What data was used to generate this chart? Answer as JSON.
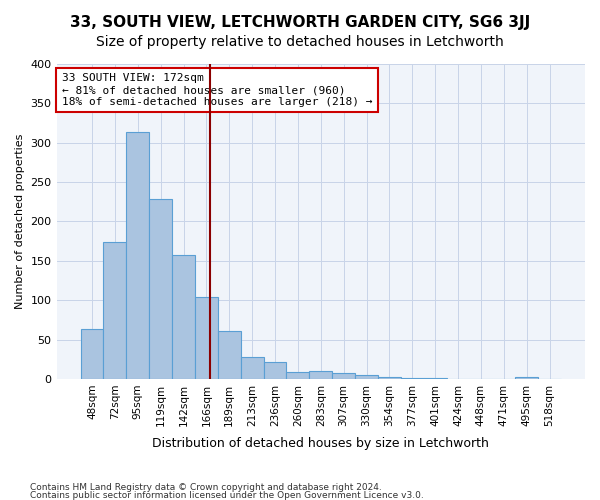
{
  "title": "33, SOUTH VIEW, LETCHWORTH GARDEN CITY, SG6 3JJ",
  "subtitle": "Size of property relative to detached houses in Letchworth",
  "xlabel": "Distribution of detached houses by size in Letchworth",
  "ylabel": "Number of detached properties",
  "bins": [
    "48sqm",
    "72sqm",
    "95sqm",
    "119sqm",
    "142sqm",
    "166sqm",
    "189sqm",
    "213sqm",
    "236sqm",
    "260sqm",
    "283sqm",
    "307sqm",
    "330sqm",
    "354sqm",
    "377sqm",
    "401sqm",
    "424sqm",
    "448sqm",
    "471sqm",
    "495sqm",
    "518sqm"
  ],
  "values": [
    63,
    174,
    314,
    229,
    158,
    104,
    61,
    28,
    22,
    9,
    10,
    7,
    5,
    2,
    1,
    1,
    0,
    0,
    0,
    3,
    0
  ],
  "bar_width": 1.0,
  "bar_color": "#aac4e0",
  "bar_edge_color": "#5a9fd4",
  "vline_bin_index": 5.15,
  "annotation_text": "33 SOUTH VIEW: 172sqm\n← 81% of detached houses are smaller (960)\n18% of semi-detached houses are larger (218) →",
  "annotation_box_color": "#ffffff",
  "annotation_box_edge": "#cc0000",
  "ylim": [
    0,
    400
  ],
  "yticks": [
    0,
    50,
    100,
    150,
    200,
    250,
    300,
    350,
    400
  ],
  "footer1": "Contains HM Land Registry data © Crown copyright and database right 2024.",
  "footer2": "Contains public sector information licensed under the Open Government Licence v3.0.",
  "background_color": "#f0f4fa",
  "grid_color": "#c8d4e8",
  "vline_color": "#8b0000",
  "title_fontsize": 11,
  "subtitle_fontsize": 10
}
